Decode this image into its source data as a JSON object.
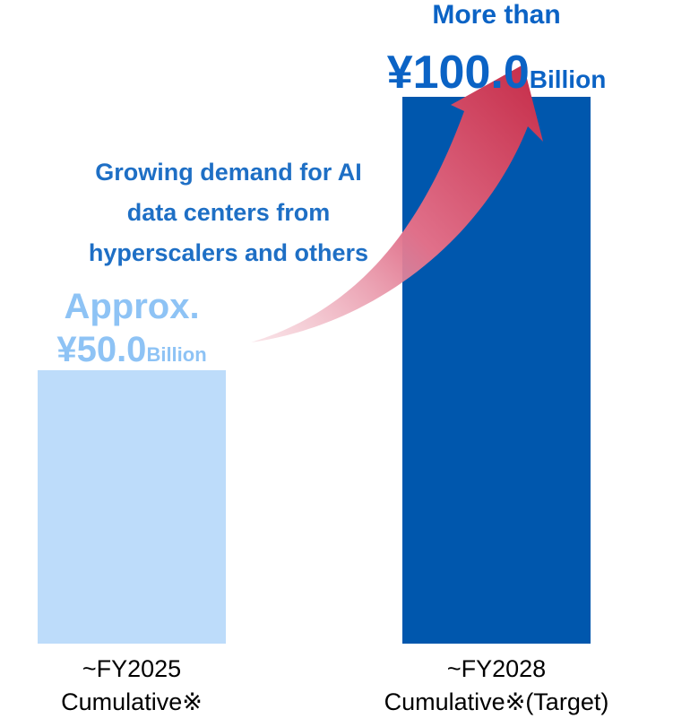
{
  "chart_data": {
    "type": "bar",
    "categories": [
      "~FY2025\nCumulative※",
      "~FY2028\nCumulative※(Target)"
    ],
    "values": [
      50,
      100
    ],
    "value_labels": [
      "¥50.0",
      "¥100.0"
    ],
    "label_prefixes": [
      "Approx.",
      "More than"
    ],
    "unit": "Billion",
    "colors": [
      "#bddcfa",
      "#0057ad"
    ],
    "annotation": [
      "Growing demand for AI",
      "data centers from",
      "hyperscalers and others"
    ]
  }
}
